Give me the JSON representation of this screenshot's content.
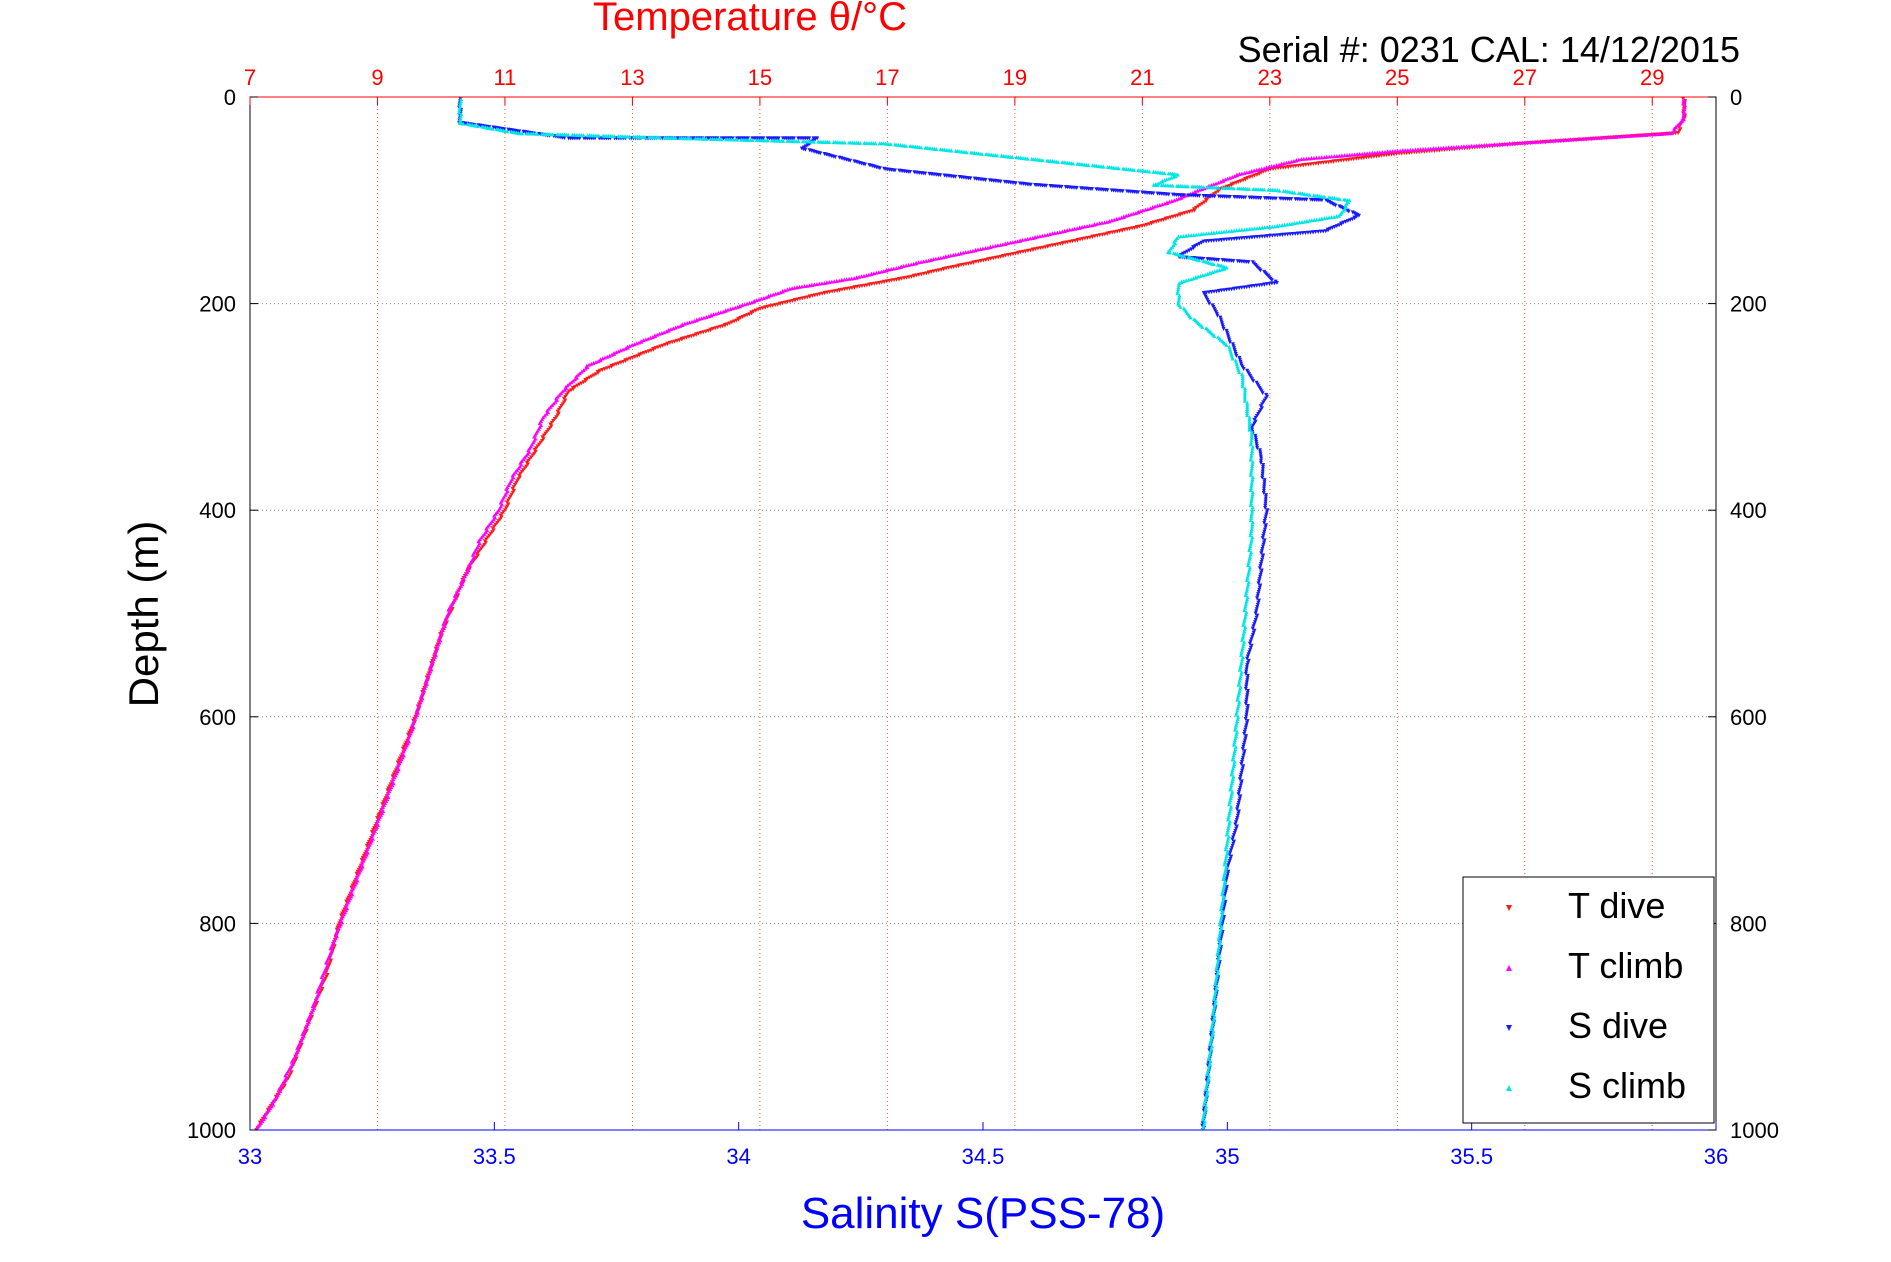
{
  "chart_data": {
    "type": "scatter",
    "title": "Temperature θ/°C",
    "subtitle": "Serial #: 0231  CAL: 14/12/2015",
    "ylabel": "Depth (m)",
    "xlabel_bottom": "Salinity S(PSS-78)",
    "y_range": [
      0,
      1000
    ],
    "y_reversed": true,
    "y_ticks": [
      "0",
      "200",
      "400",
      "600",
      "800",
      "1000"
    ],
    "temp_range": [
      7,
      30
    ],
    "temp_ticks": [
      "7",
      "9",
      "11",
      "13",
      "15",
      "17",
      "19",
      "21",
      "23",
      "25",
      "27",
      "29"
    ],
    "sal_range": [
      33,
      36
    ],
    "sal_ticks": [
      "33",
      "33.5",
      "34",
      "34.5",
      "35",
      "35.5",
      "36"
    ],
    "grid": true,
    "legend_position": "bottom-right",
    "colors": {
      "temp_axis": "#ff0000",
      "sal_axis": "#0000ff",
      "grid": "#888888"
    },
    "series": [
      {
        "name": "T dive",
        "axis": "temperature",
        "color": "#ff1a1a",
        "marker": "triangle-down",
        "points": [
          [
            29.5,
            2
          ],
          [
            29.5,
            20
          ],
          [
            29.4,
            35
          ],
          [
            27,
            45
          ],
          [
            25,
            55
          ],
          [
            23,
            70
          ],
          [
            22.2,
            90
          ],
          [
            21.8,
            110
          ],
          [
            21,
            125
          ],
          [
            19.5,
            145
          ],
          [
            18,
            165
          ],
          [
            17.3,
            175
          ],
          [
            16,
            190
          ],
          [
            15,
            205
          ],
          [
            14.5,
            220
          ],
          [
            13.5,
            240
          ],
          [
            12.5,
            265
          ],
          [
            12,
            285
          ],
          [
            11.8,
            310
          ],
          [
            11.5,
            340
          ],
          [
            11.2,
            370
          ],
          [
            11,
            400
          ],
          [
            10.7,
            430
          ],
          [
            10.4,
            460
          ],
          [
            10.2,
            490
          ],
          [
            10,
            520
          ],
          [
            9.8,
            560
          ],
          [
            9.6,
            600
          ],
          [
            9.3,
            650
          ],
          [
            9,
            700
          ],
          [
            8.7,
            750
          ],
          [
            8.4,
            800
          ],
          [
            8.2,
            850
          ],
          [
            7.9,
            900
          ],
          [
            7.6,
            950
          ],
          [
            7.1,
            1000
          ]
        ]
      },
      {
        "name": "T climb",
        "axis": "temperature",
        "color": "#ff00ff",
        "marker": "triangle-up",
        "points": [
          [
            29.5,
            2
          ],
          [
            29.5,
            20
          ],
          [
            29.3,
            35
          ],
          [
            27.5,
            42
          ],
          [
            25,
            52
          ],
          [
            23.5,
            60
          ],
          [
            22.5,
            75
          ],
          [
            21.5,
            100
          ],
          [
            20.5,
            120
          ],
          [
            19,
            140
          ],
          [
            17.5,
            160
          ],
          [
            16.5,
            175
          ],
          [
            15.5,
            185
          ],
          [
            14.8,
            200
          ],
          [
            13.8,
            220
          ],
          [
            13,
            240
          ],
          [
            12.3,
            260
          ],
          [
            11.9,
            285
          ],
          [
            11.6,
            310
          ],
          [
            11.4,
            340
          ],
          [
            11.1,
            370
          ],
          [
            10.9,
            400
          ],
          [
            10.6,
            430
          ],
          [
            10.4,
            460
          ],
          [
            10.1,
            500
          ],
          [
            9.9,
            540
          ],
          [
            9.7,
            580
          ],
          [
            9.5,
            620
          ],
          [
            9.2,
            670
          ],
          [
            8.9,
            720
          ],
          [
            8.6,
            770
          ],
          [
            8.3,
            820
          ],
          [
            8,
            880
          ],
          [
            7.7,
            930
          ],
          [
            7.4,
            970
          ],
          [
            7.1,
            1000
          ]
        ]
      },
      {
        "name": "S dive",
        "axis": "salinity",
        "color": "#1a1aff",
        "marker": "triangle-down",
        "points": [
          [
            33.43,
            2
          ],
          [
            33.43,
            25
          ],
          [
            33.65,
            40
          ],
          [
            34.16,
            40
          ],
          [
            34.13,
            50
          ],
          [
            34.3,
            70
          ],
          [
            34.6,
            85
          ],
          [
            34.9,
            95
          ],
          [
            35.2,
            100
          ],
          [
            35.27,
            115
          ],
          [
            35.2,
            130
          ],
          [
            34.95,
            140
          ],
          [
            34.9,
            155
          ],
          [
            35.05,
            160
          ],
          [
            35.1,
            180
          ],
          [
            34.95,
            190
          ],
          [
            34.98,
            210
          ],
          [
            35,
            230
          ],
          [
            35.03,
            260
          ],
          [
            35.08,
            290
          ],
          [
            35.05,
            320
          ],
          [
            35.07,
            350
          ],
          [
            35.08,
            400
          ],
          [
            35.07,
            450
          ],
          [
            35.06,
            500
          ],
          [
            35.04,
            550
          ],
          [
            35.04,
            600
          ],
          [
            35.03,
            650
          ],
          [
            35.02,
            700
          ],
          [
            35,
            750
          ],
          [
            34.99,
            800
          ],
          [
            34.98,
            850
          ],
          [
            34.97,
            900
          ],
          [
            34.96,
            950
          ],
          [
            34.95,
            1000
          ]
        ]
      },
      {
        "name": "S climb",
        "axis": "salinity",
        "color": "#00e5e5",
        "marker": "triangle-up",
        "points": [
          [
            33.43,
            2
          ],
          [
            33.43,
            25
          ],
          [
            33.55,
            35
          ],
          [
            33.9,
            40
          ],
          [
            34.3,
            45
          ],
          [
            34.5,
            55
          ],
          [
            34.7,
            65
          ],
          [
            34.9,
            75
          ],
          [
            34.85,
            85
          ],
          [
            35.1,
            90
          ],
          [
            35.25,
            100
          ],
          [
            35.23,
            115
          ],
          [
            35.1,
            125
          ],
          [
            34.9,
            135
          ],
          [
            34.88,
            150
          ],
          [
            35,
            165
          ],
          [
            34.9,
            180
          ],
          [
            34.9,
            200
          ],
          [
            34.93,
            215
          ],
          [
            35,
            240
          ],
          [
            35.03,
            270
          ],
          [
            35.04,
            300
          ],
          [
            35.05,
            330
          ],
          [
            35.05,
            370
          ],
          [
            35.05,
            420
          ],
          [
            35.04,
            480
          ],
          [
            35.03,
            540
          ],
          [
            35.02,
            600
          ],
          [
            35.01,
            660
          ],
          [
            35,
            720
          ],
          [
            34.99,
            780
          ],
          [
            34.98,
            840
          ],
          [
            34.97,
            900
          ],
          [
            34.96,
            950
          ],
          [
            34.95,
            1000
          ]
        ]
      }
    ]
  }
}
